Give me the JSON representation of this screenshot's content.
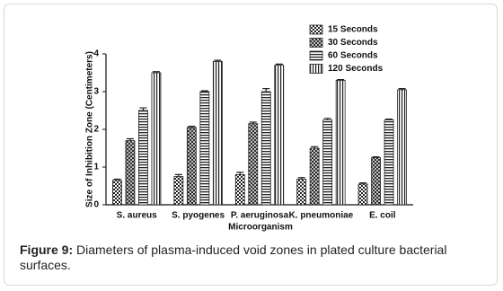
{
  "chart_data": {
    "type": "bar",
    "ylabel": "Size of Inhibition Zone (Centimeters)",
    "xlabel": "Microorganism",
    "categories": [
      "S. aureus",
      "S. pyogenes",
      "P. aeruginosa",
      "K. pneumoniae",
      "E. coil"
    ],
    "series": [
      {
        "name": "15 Seconds",
        "pattern": "checker",
        "color": "#222222",
        "values": [
          0.65,
          0.75,
          0.8,
          0.68,
          0.55
        ],
        "errors": [
          0.03,
          0.05,
          0.06,
          0.04,
          0.03
        ]
      },
      {
        "name": "30 Seconds",
        "pattern": "cross",
        "color": "#222222",
        "values": [
          1.7,
          2.05,
          2.15,
          1.5,
          1.25
        ],
        "errors": [
          0.05,
          0.03,
          0.04,
          0.04,
          0.02
        ]
      },
      {
        "name": "60 Seconds",
        "pattern": "hlines",
        "color": "#222222",
        "values": [
          2.5,
          3.0,
          3.0,
          2.25,
          2.25
        ],
        "errors": [
          0.07,
          0.02,
          0.08,
          0.04,
          0.02
        ]
      },
      {
        "name": "120 Seconds",
        "pattern": "vlines",
        "color": "#222222",
        "values": [
          3.5,
          3.8,
          3.7,
          3.3,
          3.05
        ],
        "errors": [
          0.03,
          0.03,
          0.03,
          0.02,
          0.03
        ]
      }
    ],
    "ylim": [
      0,
      4
    ],
    "yticks": [
      0,
      1,
      2,
      3,
      4
    ],
    "grid": false,
    "legend": "top-right"
  },
  "caption": {
    "label": "Figure 9:",
    "text": "Diameters of plasma-induced void zones in plated culture bacterial surfaces."
  }
}
